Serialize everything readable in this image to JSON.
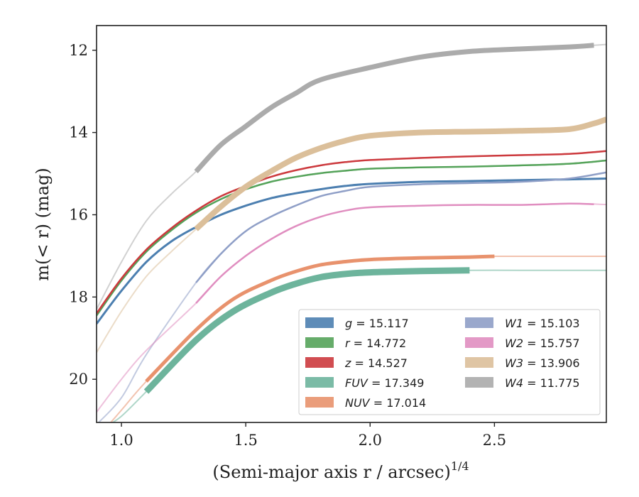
{
  "chart_data": {
    "type": "line",
    "xlabel": "(Semi-major axis r / arcsec)",
    "xlabel_sup": "1/4",
    "ylabel": "m(< r) (mag)",
    "xlim": [
      0.9,
      2.95
    ],
    "ylim": [
      21.05,
      11.4
    ],
    "y_inverted": true,
    "x_ticks": [
      1.0,
      1.5,
      2.0,
      2.5
    ],
    "x_tick_labels": [
      "1.0",
      "1.5",
      "2.0",
      "2.5"
    ],
    "y_ticks": [
      12,
      14,
      16,
      18,
      20
    ],
    "y_tick_labels": [
      "12",
      "14",
      "16",
      "18",
      "20"
    ],
    "grid": false,
    "legend_position": "lower-right",
    "series": [
      {
        "name": "g = 15.117",
        "band": "g",
        "total": 15.117,
        "color": "#4c7fb0",
        "x": [
          0.9,
          1.0,
          1.1,
          1.2,
          1.3,
          1.4,
          1.5,
          1.6,
          1.7,
          1.8,
          1.9,
          2.0,
          2.2,
          2.4,
          2.6,
          2.8,
          2.95
        ],
        "y": [
          18.65,
          17.85,
          17.15,
          16.65,
          16.3,
          16.0,
          15.78,
          15.6,
          15.48,
          15.38,
          15.3,
          15.25,
          15.2,
          15.18,
          15.16,
          15.14,
          15.12
        ],
        "x_band": [
          0.9,
          2.95
        ],
        "width": 2.5,
        "band_width": 3
      },
      {
        "name": "r = 14.772",
        "band": "r",
        "total": 14.772,
        "color": "#55a35a",
        "x": [
          0.9,
          1.0,
          1.1,
          1.2,
          1.3,
          1.4,
          1.5,
          1.6,
          1.7,
          1.8,
          1.9,
          2.0,
          2.2,
          2.4,
          2.6,
          2.8,
          2.95
        ],
        "y": [
          18.45,
          17.6,
          16.9,
          16.38,
          15.95,
          15.62,
          15.38,
          15.2,
          15.08,
          14.99,
          14.93,
          14.88,
          14.85,
          14.83,
          14.8,
          14.76,
          14.68
        ],
        "x_band": [
          0.9,
          2.95
        ],
        "width": 2.2,
        "band_width": 2.5
      },
      {
        "name": "z = 14.527",
        "band": "z",
        "total": 14.527,
        "color": "#cc3a3e",
        "x": [
          0.9,
          1.0,
          1.1,
          1.2,
          1.3,
          1.4,
          1.5,
          1.6,
          1.7,
          1.8,
          1.9,
          2.0,
          2.2,
          2.4,
          2.6,
          2.8,
          2.95
        ],
        "y": [
          18.4,
          17.55,
          16.85,
          16.33,
          15.9,
          15.55,
          15.3,
          15.08,
          14.92,
          14.8,
          14.72,
          14.67,
          14.62,
          14.58,
          14.55,
          14.52,
          14.45
        ],
        "x_band": [
          0.9,
          2.95
        ],
        "width": 2.2,
        "band_width": 2.5
      },
      {
        "name": "FUV = 17.349",
        "band": "FUV",
        "total": 17.349,
        "color": "#6db49c",
        "x": [
          0.95,
          1.0,
          1.1,
          1.3,
          1.45,
          1.6,
          1.7,
          1.8,
          1.9,
          2.0,
          2.2,
          2.4,
          2.6,
          2.8,
          2.95
        ],
        "y": [
          21.1,
          20.9,
          20.3,
          19.05,
          18.35,
          17.9,
          17.68,
          17.52,
          17.44,
          17.4,
          17.37,
          17.35,
          17.35,
          17.35,
          17.35
        ],
        "x_band": [
          1.1,
          2.4
        ],
        "width": 2,
        "band_width": 9
      },
      {
        "name": "NUV = 17.014",
        "band": "NUV",
        "total": 17.014,
        "color": "#e8926d",
        "x": [
          0.95,
          1.0,
          1.1,
          1.3,
          1.45,
          1.6,
          1.7,
          1.8,
          1.9,
          2.0,
          2.2,
          2.4,
          2.5,
          2.7,
          2.95
        ],
        "y": [
          21.1,
          20.75,
          20.05,
          18.8,
          18.05,
          17.6,
          17.38,
          17.22,
          17.14,
          17.09,
          17.05,
          17.03,
          17.01,
          17.01,
          17.01
        ],
        "x_band": [
          1.1,
          2.5
        ],
        "width": 2,
        "band_width": 5
      },
      {
        "name": "W1 = 15.103",
        "band": "W1",
        "total": 15.103,
        "color": "#8f9fc7",
        "x": [
          0.9,
          1.0,
          1.1,
          1.3,
          1.4,
          1.5,
          1.6,
          1.7,
          1.8,
          1.9,
          2.0,
          2.2,
          2.4,
          2.6,
          2.8,
          2.95
        ],
        "y": [
          21.1,
          20.45,
          19.4,
          17.65,
          16.95,
          16.4,
          16.05,
          15.78,
          15.55,
          15.42,
          15.32,
          15.26,
          15.23,
          15.2,
          15.12,
          14.97
        ],
        "x_band": [
          1.3,
          2.95
        ],
        "width": 2,
        "band_width": 2.5
      },
      {
        "name": "W2 = 15.757",
        "band": "W2",
        "total": 15.757,
        "color": "#e08ec0",
        "x": [
          0.9,
          1.0,
          1.1,
          1.3,
          1.4,
          1.5,
          1.6,
          1.7,
          1.8,
          1.9,
          2.0,
          2.2,
          2.4,
          2.6,
          2.8,
          2.95
        ],
        "y": [
          20.8,
          20.0,
          19.3,
          18.15,
          17.5,
          17.0,
          16.6,
          16.28,
          16.05,
          15.9,
          15.82,
          15.78,
          15.76,
          15.76,
          15.73,
          15.75
        ],
        "x_band": [
          1.3,
          2.9
        ],
        "width": 2,
        "band_width": 2.5
      },
      {
        "name": "W3 = 13.906",
        "band": "W3",
        "total": 13.906,
        "color": "#dbbf9a",
        "x": [
          0.9,
          1.0,
          1.1,
          1.2,
          1.3,
          1.4,
          1.5,
          1.6,
          1.7,
          1.8,
          1.9,
          2.0,
          2.2,
          2.4,
          2.6,
          2.8,
          2.9,
          2.95
        ],
        "y": [
          19.35,
          18.35,
          17.5,
          16.9,
          16.35,
          15.8,
          15.32,
          14.95,
          14.62,
          14.38,
          14.2,
          14.08,
          14.0,
          13.98,
          13.96,
          13.92,
          13.78,
          13.68
        ],
        "x_band": [
          1.3,
          2.95
        ],
        "width": 2,
        "band_width": 8
      },
      {
        "name": "W4 = 11.775",
        "band": "W4",
        "total": 11.775,
        "color": "#ababab",
        "x": [
          0.9,
          1.0,
          1.1,
          1.2,
          1.3,
          1.4,
          1.5,
          1.6,
          1.7,
          1.8,
          2.0,
          2.2,
          2.4,
          2.6,
          2.8,
          2.9,
          2.95
        ],
        "y": [
          18.3,
          17.15,
          16.15,
          15.5,
          14.95,
          14.3,
          13.85,
          13.4,
          13.05,
          12.72,
          12.42,
          12.17,
          12.03,
          11.97,
          11.92,
          11.88,
          11.86
        ],
        "x_band": [
          1.3,
          2.9
        ],
        "width": 2,
        "band_width": 7
      }
    ]
  },
  "legend": {
    "columns": [
      [
        "g",
        "r",
        "z",
        "FUV",
        "NUV"
      ],
      [
        "W1",
        "W2",
        "W3",
        "W4"
      ]
    ],
    "entries": {
      "g": {
        "symbol": "g",
        "value": "= 15.117"
      },
      "r": {
        "symbol": "r",
        "value": "= 14.772"
      },
      "z": {
        "symbol": "z",
        "value": "= 14.527"
      },
      "FUV": {
        "symbol": "FUV",
        "value": "= 17.349"
      },
      "NUV": {
        "symbol": "NUV",
        "value": "= 17.014"
      },
      "W1": {
        "symbol": "W1",
        "value": "= 15.103"
      },
      "W2": {
        "symbol": "W2",
        "value": "= 15.757"
      },
      "W3": {
        "symbol": "W3",
        "value": "= 13.906"
      },
      "W4": {
        "symbol": "W4",
        "value": "= 11.775"
      }
    }
  }
}
